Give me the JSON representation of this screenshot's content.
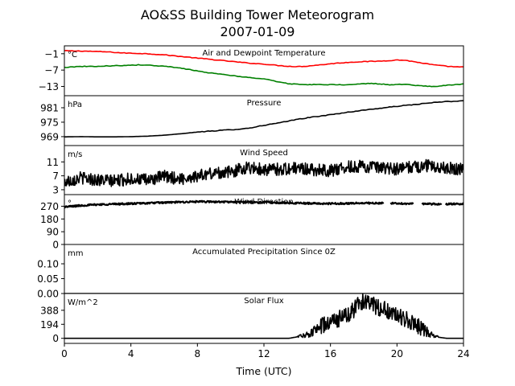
{
  "title": "AO&SS Building Tower Meteorogram",
  "subtitle": "2007-01-09",
  "chart_data": {
    "type": "line",
    "xlabel": "Time (UTC)",
    "xlim": [
      0,
      24
    ],
    "xticks": [
      0,
      4,
      8,
      12,
      16,
      20,
      24
    ],
    "panels": [
      {
        "title": "Air and Dewpoint Temperature",
        "unit": "°C",
        "ylim": [
          -16.4,
          1.9
        ],
        "yticks": [
          -1,
          -7,
          -13
        ],
        "series": [
          {
            "color": "#ff0000",
            "points": [
              [
                0,
                0.1
              ],
              [
                0.5,
                0
              ],
              [
                1,
                0
              ],
              [
                1.5,
                -0.1
              ],
              [
                2,
                -0.2
              ],
              [
                2.5,
                -0.3
              ],
              [
                3,
                -0.5
              ],
              [
                3.5,
                -0.7
              ],
              [
                4,
                -0.8
              ],
              [
                4.5,
                -0.9
              ],
              [
                5,
                -1.0
              ],
              [
                5.5,
                -1.2
              ],
              [
                6,
                -1.4
              ],
              [
                6.5,
                -1.7
              ],
              [
                7,
                -2.0
              ],
              [
                7.5,
                -2.3
              ],
              [
                8,
                -2.6
              ],
              [
                8.5,
                -2.9
              ],
              [
                9,
                -3.2
              ],
              [
                9.5,
                -3.5
              ],
              [
                10,
                -3.8
              ],
              [
                10.5,
                -4.1
              ],
              [
                11,
                -4.4
              ],
              [
                11.5,
                -4.6
              ],
              [
                12,
                -4.8
              ],
              [
                12.5,
                -5.1
              ],
              [
                13,
                -5.4
              ],
              [
                13.5,
                -5.6
              ],
              [
                14,
                -5.7
              ],
              [
                14.5,
                -5.6
              ],
              [
                15,
                -5.3
              ],
              [
                15.5,
                -5.0
              ],
              [
                16,
                -4.7
              ],
              [
                16.5,
                -4.4
              ],
              [
                17,
                -4.2
              ],
              [
                17.5,
                -4.0
              ],
              [
                18,
                -3.9
              ],
              [
                18.5,
                -3.8
              ],
              [
                19,
                -3.7
              ],
              [
                19.5,
                -3.5
              ],
              [
                20,
                -3.3
              ],
              [
                20.5,
                -3.4
              ],
              [
                21,
                -3.9
              ],
              [
                21.5,
                -4.4
              ],
              [
                22,
                -4.9
              ],
              [
                22.5,
                -5.3
              ],
              [
                23,
                -5.6
              ],
              [
                23.5,
                -5.8
              ],
              [
                24,
                -5.9
              ]
            ]
          },
          {
            "color": "#008000",
            "points": [
              [
                0,
                -6.0
              ],
              [
                0.5,
                -5.8
              ],
              [
                1,
                -5.7
              ],
              [
                1.5,
                -5.6
              ],
              [
                2,
                -5.6
              ],
              [
                2.5,
                -5.5
              ],
              [
                3,
                -5.4
              ],
              [
                3.5,
                -5.3
              ],
              [
                4,
                -5.2
              ],
              [
                4.5,
                -5.1
              ],
              [
                5,
                -5.2
              ],
              [
                5.5,
                -5.4
              ],
              [
                6,
                -5.6
              ],
              [
                6.5,
                -5.9
              ],
              [
                7,
                -6.3
              ],
              [
                7.5,
                -6.8
              ],
              [
                8,
                -7.3
              ],
              [
                8.5,
                -7.8
              ],
              [
                9,
                -8.2
              ],
              [
                9.5,
                -8.6
              ],
              [
                10,
                -8.9
              ],
              [
                10.5,
                -9.3
              ],
              [
                11,
                -9.7
              ],
              [
                11.5,
                -10.0
              ],
              [
                12,
                -10.2
              ],
              [
                12.5,
                -10.8
              ],
              [
                13,
                -11.5
              ],
              [
                13.5,
                -12.0
              ],
              [
                14,
                -12.2
              ],
              [
                14.5,
                -12.3
              ],
              [
                15,
                -12.3
              ],
              [
                15.5,
                -12.4
              ],
              [
                16,
                -12.3
              ],
              [
                16.5,
                -12.4
              ],
              [
                17,
                -12.5
              ],
              [
                17.5,
                -12.3
              ],
              [
                18,
                -12.0
              ],
              [
                18.5,
                -11.9
              ],
              [
                19,
                -12.1
              ],
              [
                19.5,
                -12.4
              ],
              [
                20,
                -12.3
              ],
              [
                20.5,
                -12.2
              ],
              [
                21,
                -12.6
              ],
              [
                21.5,
                -12.8
              ],
              [
                22,
                -13.0
              ],
              [
                22.5,
                -12.9
              ],
              [
                23,
                -12.6
              ],
              [
                23.5,
                -12.3
              ],
              [
                24,
                -12.1
              ]
            ]
          }
        ]
      },
      {
        "title": "Pressure",
        "unit": "hPa",
        "ylim": [
          965.3,
          986.0
        ],
        "yticks": [
          981,
          975,
          969
        ],
        "series": [
          {
            "color": "#000000",
            "points": [
              [
                0,
                968.9
              ],
              [
                1,
                969.0
              ],
              [
                2,
                968.9
              ],
              [
                3,
                968.9
              ],
              [
                4,
                969.0
              ],
              [
                5,
                969.2
              ],
              [
                6,
                969.6
              ],
              [
                7,
                970.2
              ],
              [
                8,
                970.9
              ],
              [
                9,
                971.4
              ],
              [
                10,
                971.9
              ],
              [
                11,
                972.4
              ],
              [
                12,
                973.7
              ],
              [
                13,
                974.8
              ],
              [
                14,
                976.2
              ],
              [
                15,
                977.2
              ],
              [
                16,
                978.1
              ],
              [
                17,
                979.1
              ],
              [
                18,
                980.0
              ],
              [
                19,
                980.8
              ],
              [
                20,
                981.6
              ],
              [
                21,
                982.3
              ],
              [
                22,
                983.0
              ],
              [
                23,
                983.6
              ],
              [
                24,
                983.8
              ]
            ]
          }
        ]
      },
      {
        "title": "Wind Speed",
        "unit": "m/s",
        "ylim": [
          1.6,
          15.7
        ],
        "yticks": [
          11,
          7,
          3
        ],
        "noise": 1.8,
        "series": [
          {
            "color": "#000000",
            "points": [
              [
                0,
                5.2
              ],
              [
                1,
                6.5
              ],
              [
                2,
                5.8
              ],
              [
                3,
                5.5
              ],
              [
                4,
                6.2
              ],
              [
                5,
                5.7
              ],
              [
                6,
                6.8
              ],
              [
                7,
                6.1
              ],
              [
                8,
                7.0
              ],
              [
                9,
                7.8
              ],
              [
                10,
                8.1
              ],
              [
                11,
                9.5
              ],
              [
                12,
                8.8
              ],
              [
                13,
                8.9
              ],
              [
                14,
                9.2
              ],
              [
                15,
                8.8
              ],
              [
                16,
                8.5
              ],
              [
                17,
                9.5
              ],
              [
                18,
                9.8
              ],
              [
                19,
                9.1
              ],
              [
                20,
                8.9
              ],
              [
                21,
                9.6
              ],
              [
                22,
                9.9
              ],
              [
                23,
                9.4
              ],
              [
                24,
                8.7
              ]
            ]
          }
        ]
      },
      {
        "title": "Wind Direction",
        "unit": "°",
        "ylim": [
          0,
          352
        ],
        "yticks": [
          270,
          180,
          90,
          0
        ],
        "noise": 6,
        "gaps": [
          [
            19.2,
            19.6
          ],
          [
            21.0,
            21.5
          ],
          [
            22.7,
            22.9
          ]
        ],
        "series": [
          {
            "color": "#000000",
            "points": [
              [
                0,
                265
              ],
              [
                1,
                275
              ],
              [
                2,
                282
              ],
              [
                4,
                288
              ],
              [
                6,
                296
              ],
              [
                8,
                302
              ],
              [
                10,
                300
              ],
              [
                12,
                298
              ],
              [
                14,
                292
              ],
              [
                16,
                288
              ],
              [
                18,
                292
              ],
              [
                20,
                290
              ],
              [
                22,
                285
              ],
              [
                24,
                286
              ]
            ]
          }
        ]
      },
      {
        "title": "Accumulated Precipitation Since 0Z",
        "unit": "mm",
        "ylim": [
          0,
          0.165
        ],
        "yticks": [
          0.1,
          0.05,
          0.0
        ],
        "series": [
          {
            "color": "#000000",
            "points": [
              [
                0,
                0
              ],
              [
                24,
                0
              ]
            ]
          }
        ]
      },
      {
        "title": "Solar Flux",
        "unit": "W/m^2",
        "ylim": [
          -70,
          620
        ],
        "yticks": [
          388,
          194,
          0
        ],
        "noise": 120,
        "noiseRange": [
          14.0,
          22.5
        ],
        "series": [
          {
            "color": "#000000",
            "points": [
              [
                0,
                0
              ],
              [
                13.5,
                0
              ],
              [
                14.5,
                40
              ],
              [
                15.0,
                100
              ],
              [
                15.5,
                170
              ],
              [
                16.0,
                230
              ],
              [
                16.5,
                270
              ],
              [
                17.0,
                330
              ],
              [
                17.5,
                420
              ],
              [
                18.0,
                520
              ],
              [
                18.5,
                470
              ],
              [
                19.0,
                420
              ],
              [
                19.5,
                370
              ],
              [
                20.0,
                320
              ],
              [
                20.5,
                260
              ],
              [
                21.0,
                200
              ],
              [
                21.5,
                130
              ],
              [
                22.0,
                60
              ],
              [
                22.5,
                15
              ],
              [
                23.0,
                0
              ],
              [
                24,
                0
              ]
            ]
          }
        ]
      }
    ]
  }
}
